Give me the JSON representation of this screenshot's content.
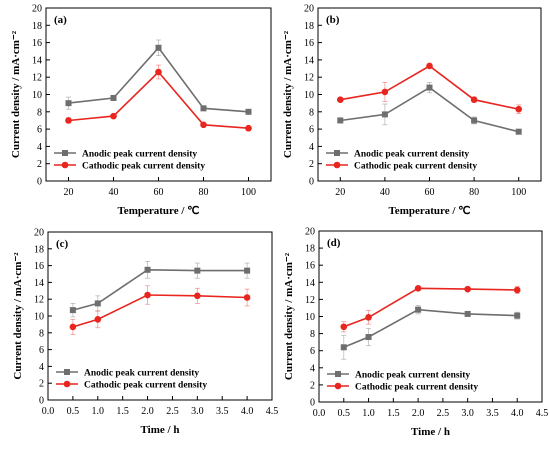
{
  "colors": {
    "anodic": "#6e6e6e",
    "cathodic": "#e8251f",
    "axis": "#000000"
  },
  "chart_data": [
    {
      "type": "line",
      "panel": "(a)",
      "xlabel": "Temperature / ℃",
      "ylabel": "Current density / mA·cm⁻²",
      "x": [
        20,
        40,
        60,
        80,
        100
      ],
      "xlim": [
        10,
        110
      ],
      "ylim": [
        0,
        20
      ],
      "xticks": [
        "20",
        "40",
        "60",
        "80",
        "100"
      ],
      "yticks": [
        "0",
        "2",
        "4",
        "6",
        "8",
        "10",
        "12",
        "14",
        "16",
        "18",
        "20"
      ],
      "legend_position": "bottom-left",
      "series": [
        {
          "name": "Anodic peak current density",
          "values": [
            9.0,
            9.6,
            15.4,
            8.4,
            8.0
          ],
          "errors": [
            0.7,
            0.2,
            0.9,
            0.2,
            0.1
          ]
        },
        {
          "name": "Cathodic peak current density",
          "values": [
            7.0,
            7.5,
            12.6,
            6.5,
            6.1
          ],
          "errors": [
            0.3,
            0.2,
            0.8,
            0.2,
            0.1
          ]
        }
      ]
    },
    {
      "type": "line",
      "panel": "(b)",
      "xlabel": "Temperature / ℃",
      "ylabel": "Current density / mA·cm⁻²",
      "x": [
        20,
        40,
        60,
        80,
        100
      ],
      "xlim": [
        10,
        110
      ],
      "ylim": [
        0,
        20
      ],
      "xticks": [
        "20",
        "40",
        "60",
        "80",
        "100"
      ],
      "yticks": [
        "0",
        "2",
        "4",
        "6",
        "8",
        "10",
        "12",
        "14",
        "16",
        "18",
        "20"
      ],
      "legend_position": "bottom-left",
      "series": [
        {
          "name": "Anodic peak current density",
          "values": [
            7.0,
            7.7,
            10.8,
            7.0,
            5.7
          ],
          "errors": [
            0.2,
            1.2,
            0.6,
            0.4,
            0.1
          ]
        },
        {
          "name": "Cathodic peak current density",
          "values": [
            9.4,
            10.3,
            13.3,
            9.4,
            8.3
          ],
          "errors": [
            0.2,
            1.1,
            0.2,
            0.3,
            0.5
          ]
        }
      ]
    },
    {
      "type": "line",
      "panel": "(c)",
      "xlabel": "Time / h",
      "ylabel": "Current density / mA·cm⁻²",
      "x": [
        0.5,
        1.0,
        2.0,
        3.0,
        4.0
      ],
      "xlim": [
        0.0,
        4.5
      ],
      "ylim": [
        0,
        20
      ],
      "xticks": [
        "0.0",
        "0.5",
        "1.0",
        "1.5",
        "2.0",
        "2.5",
        "3.0",
        "3.5",
        "4.0",
        "4.5"
      ],
      "yticks": [
        "0",
        "2",
        "4",
        "6",
        "8",
        "10",
        "12",
        "14",
        "16",
        "18",
        "20"
      ],
      "legend_position": "bottom-left",
      "series": [
        {
          "name": "Anodic peak current density",
          "values": [
            10.7,
            11.5,
            15.5,
            15.4,
            15.4
          ],
          "errors": [
            0.8,
            0.9,
            1.0,
            0.9,
            0.9
          ]
        },
        {
          "name": "Cathodic peak current density",
          "values": [
            8.7,
            9.6,
            12.5,
            12.4,
            12.2
          ],
          "errors": [
            0.9,
            1.0,
            1.1,
            0.9,
            1.0
          ]
        }
      ]
    },
    {
      "type": "line",
      "panel": "(d)",
      "xlabel": "Time / h",
      "ylabel": "Current density / mA·cm⁻²",
      "x": [
        0.5,
        1.0,
        2.0,
        3.0,
        4.0
      ],
      "xlim": [
        0.0,
        4.5
      ],
      "ylim": [
        0,
        20
      ],
      "xticks": [
        "0.0",
        "0.5",
        "1.0",
        "1.5",
        "2.0",
        "2.5",
        "3.0",
        "3.5",
        "4.0",
        "4.5"
      ],
      "yticks": [
        "0",
        "2",
        "4",
        "6",
        "8",
        "10",
        "12",
        "14",
        "16",
        "18",
        "20"
      ],
      "legend_position": "bottom-left",
      "series": [
        {
          "name": "Anodic peak current density",
          "values": [
            6.4,
            7.6,
            10.8,
            10.3,
            10.1
          ],
          "errors": [
            1.4,
            1.0,
            0.5,
            0.2,
            0.4
          ]
        },
        {
          "name": "Cathodic peak current density",
          "values": [
            8.8,
            9.9,
            13.3,
            13.2,
            13.1
          ],
          "errors": [
            0.6,
            0.8,
            0.2,
            0.2,
            0.4
          ]
        }
      ]
    }
  ]
}
